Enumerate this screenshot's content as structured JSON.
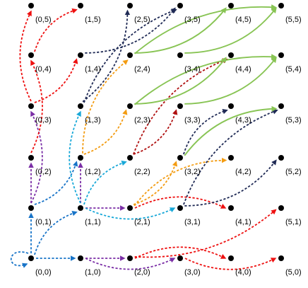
{
  "colors": {
    "red": "#ee1111",
    "navy": "#1f2a55",
    "green": "#88c454",
    "purple": "#7b2fa6",
    "blue": "#1874c8",
    "cyan": "#18a8d8",
    "orange": "#f39c12",
    "darkred": "#b01111",
    "node": "#000000"
  },
  "nodes": [
    {
      "id": "0,0",
      "label": "(0,0)"
    },
    {
      "id": "1,0",
      "label": "(1,0)"
    },
    {
      "id": "2,0",
      "label": "(2,0)"
    },
    {
      "id": "3,0",
      "label": "(3,0)"
    },
    {
      "id": "4,0",
      "label": "(4,0)"
    },
    {
      "id": "5,0",
      "label": "(5,0)"
    },
    {
      "id": "0,1",
      "label": "(0,1)"
    },
    {
      "id": "1,1",
      "label": "(1,1)"
    },
    {
      "id": "2,1",
      "label": "(2,1)"
    },
    {
      "id": "3,1",
      "label": "(3,1)"
    },
    {
      "id": "4,1",
      "label": "(4,1)"
    },
    {
      "id": "5,1",
      "label": "(5,1)"
    },
    {
      "id": "0,2",
      "label": "(0,2)"
    },
    {
      "id": "1,2",
      "label": "(1,2)"
    },
    {
      "id": "2,2",
      "label": "(2,2)"
    },
    {
      "id": "3,2",
      "label": "(3,2)"
    },
    {
      "id": "4,2",
      "label": "(4,2)"
    },
    {
      "id": "5,2",
      "label": "(5,2)"
    },
    {
      "id": "0,3",
      "label": "(0,3)"
    },
    {
      "id": "1,3",
      "label": "(1,3)"
    },
    {
      "id": "2,3",
      "label": "(2,3)"
    },
    {
      "id": "3,3",
      "label": "(3,3)"
    },
    {
      "id": "4,3",
      "label": "(4,3)"
    },
    {
      "id": "5,3",
      "label": "(5,3)"
    },
    {
      "id": "0,4",
      "label": "(0,4)"
    },
    {
      "id": "1,4",
      "label": "(1,4)"
    },
    {
      "id": "2,4",
      "label": "(2,4)"
    },
    {
      "id": "3,4",
      "label": "(3,4)"
    },
    {
      "id": "4,4",
      "label": "(4,4)"
    },
    {
      "id": "5,4",
      "label": "(5,4)"
    },
    {
      "id": "0,5",
      "label": "(0,5)"
    },
    {
      "id": "1,5",
      "label": "(1,5)"
    },
    {
      "id": "2,5",
      "label": "(2,5)"
    },
    {
      "id": "3,5",
      "label": "(3,5)"
    },
    {
      "id": "4,5",
      "label": "(4,5)"
    },
    {
      "id": "5,5",
      "label": "(5,5)"
    }
  ],
  "edges": [
    {
      "from": "0,0",
      "to": "0,0",
      "color": "blue",
      "style": "dashed"
    },
    {
      "from": "0,0",
      "to": "1,0",
      "color": "blue",
      "style": "dashed"
    },
    {
      "from": "0,0",
      "to": "0,1",
      "color": "blue",
      "style": "dashed"
    },
    {
      "from": "0,0",
      "to": "1,1",
      "color": "blue",
      "style": "dashed"
    },
    {
      "from": "0,1",
      "to": "1,2",
      "color": "blue",
      "style": "dashed"
    },
    {
      "from": "1,0",
      "to": "2,0",
      "color": "purple",
      "style": "dashed"
    },
    {
      "from": "1,0",
      "to": "3,0",
      "color": "purple",
      "style": "dashed"
    },
    {
      "from": "0,1",
      "to": "0,2",
      "color": "purple",
      "style": "dashed"
    },
    {
      "from": "0,1",
      "to": "0,3",
      "color": "purple",
      "style": "dashed"
    },
    {
      "from": "1,1",
      "to": "2,1",
      "color": "purple",
      "style": "dashed"
    },
    {
      "from": "1,1",
      "to": "1,2",
      "color": "purple",
      "style": "dashed"
    },
    {
      "from": "1,1",
      "to": "2,2",
      "color": "cyan",
      "style": "dashed"
    },
    {
      "from": "1,1",
      "to": "3,1",
      "color": "cyan",
      "style": "dashed"
    },
    {
      "from": "1,1",
      "to": "1,3",
      "color": "cyan",
      "style": "dashed"
    },
    {
      "from": "2,0",
      "to": "5,1",
      "color": "red",
      "style": "dashed"
    },
    {
      "from": "2,0",
      "to": "4,0",
      "color": "red",
      "style": "dashed"
    },
    {
      "from": "3,0",
      "to": "5,0",
      "color": "red",
      "style": "dashed"
    },
    {
      "from": "2,1",
      "to": "4,1",
      "color": "red",
      "style": "dashed"
    },
    {
      "from": "0,2",
      "to": "0,4",
      "color": "red",
      "style": "dashed"
    },
    {
      "from": "0,3",
      "to": "0,5",
      "color": "red",
      "style": "dashed"
    },
    {
      "from": "0,3",
      "to": "1,4",
      "color": "red",
      "style": "dashed"
    },
    {
      "from": "0,4",
      "to": "1,5",
      "color": "red",
      "style": "dashed"
    },
    {
      "from": "1,2",
      "to": "2,3",
      "color": "orange",
      "style": "dashed"
    },
    {
      "from": "1,2",
      "to": "2,4",
      "color": "orange",
      "style": "dashed"
    },
    {
      "from": "2,1",
      "to": "3,2",
      "color": "orange",
      "style": "dashed"
    },
    {
      "from": "2,1",
      "to": "4,2",
      "color": "orange",
      "style": "dashed"
    },
    {
      "from": "2,2",
      "to": "3,3",
      "color": "darkred",
      "style": "dashed"
    },
    {
      "from": "2,2",
      "to": "4,4",
      "color": "darkred",
      "style": "dashed"
    },
    {
      "from": "1,3",
      "to": "2,5",
      "color": "navy",
      "style": "dashed"
    },
    {
      "from": "1,3",
      "to": "3,5",
      "color": "navy",
      "style": "dashed"
    },
    {
      "from": "1,4",
      "to": "3,5",
      "color": "navy",
      "style": "dashed"
    },
    {
      "from": "3,1",
      "to": "5,3",
      "color": "navy",
      "style": "dashed"
    },
    {
      "from": "3,1",
      "to": "5,2",
      "color": "navy",
      "style": "dashed"
    },
    {
      "from": "3,2",
      "to": "4,3",
      "color": "navy",
      "style": "dashed"
    },
    {
      "from": "2,4",
      "to": "4,5",
      "color": "green",
      "style": "solid"
    },
    {
      "from": "2,4",
      "to": "5,5",
      "color": "green",
      "style": "solid"
    },
    {
      "from": "2,3",
      "to": "4,4",
      "color": "green",
      "style": "solid"
    },
    {
      "from": "2,3",
      "to": "5,4",
      "color": "green",
      "style": "solid"
    },
    {
      "from": "3,3",
      "to": "5,4",
      "color": "green",
      "style": "solid"
    },
    {
      "from": "3,2",
      "to": "5,3",
      "color": "green",
      "style": "solid"
    },
    {
      "from": "3,4",
      "to": "5,5",
      "color": "green",
      "style": "solid"
    }
  ]
}
